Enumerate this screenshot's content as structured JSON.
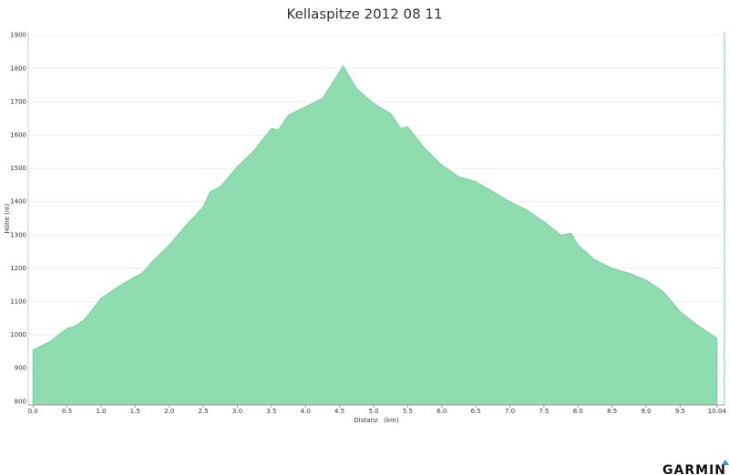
{
  "chart_data": {
    "type": "area",
    "title": "Kellaspitze 2012 08 11",
    "x_label": "Distanz   (km)",
    "y_label": "Höhe (m)",
    "x": [
      0,
      0.25,
      0.5,
      0.6,
      0.75,
      1.0,
      1.25,
      1.5,
      1.6,
      1.75,
      2.0,
      2.25,
      2.5,
      2.6,
      2.75,
      3.0,
      3.25,
      3.5,
      3.6,
      3.75,
      4.0,
      4.25,
      4.5,
      4.55,
      4.75,
      5.0,
      5.25,
      5.4,
      5.5,
      5.75,
      6.0,
      6.25,
      6.5,
      6.75,
      7.0,
      7.25,
      7.5,
      7.75,
      7.9,
      8.0,
      8.25,
      8.5,
      8.75,
      9.0,
      9.25,
      9.5,
      9.75,
      10.04
    ],
    "series": [
      {
        "name": "Höhe",
        "color": "#8fdcb0",
        "values": [
          955,
          980,
          1020,
          1025,
          1045,
          1110,
          1145,
          1175,
          1185,
          1220,
          1270,
          1330,
          1385,
          1430,
          1445,
          1505,
          1555,
          1620,
          1615,
          1660,
          1685,
          1710,
          1790,
          1808,
          1740,
          1695,
          1665,
          1620,
          1625,
          1560,
          1510,
          1475,
          1460,
          1430,
          1400,
          1375,
          1340,
          1300,
          1305,
          1270,
          1225,
          1200,
          1185,
          1165,
          1130,
          1070,
          1030,
          990
        ]
      }
    ],
    "xlim": [
      -0.07,
      10.15
    ],
    "ylim": [
      790,
      1910
    ],
    "xticks": [
      {
        "value": 0,
        "label": "0.0"
      },
      0.5,
      {
        "value": 1,
        "label": "1.0"
      },
      1.5,
      {
        "value": 2,
        "label": "2.0"
      },
      2.5,
      {
        "value": 3,
        "label": "3.0"
      },
      3.5,
      {
        "value": 4,
        "label": "4.0"
      },
      4.5,
      {
        "value": 5,
        "label": "5.0"
      },
      5.5,
      {
        "value": 6,
        "label": "6.0"
      },
      6.5,
      {
        "value": 7,
        "label": "7.0"
      },
      7.5,
      {
        "value": 8,
        "label": "8.0"
      },
      8.5,
      {
        "value": 9,
        "label": "9.0"
      },
      9.5,
      10.04
    ],
    "yticks": [
      800,
      900,
      1000,
      1100,
      1200,
      1300,
      1400,
      1500,
      1600,
      1700,
      1800,
      1900
    ],
    "grid": true
  },
  "logo": "GARMIN"
}
